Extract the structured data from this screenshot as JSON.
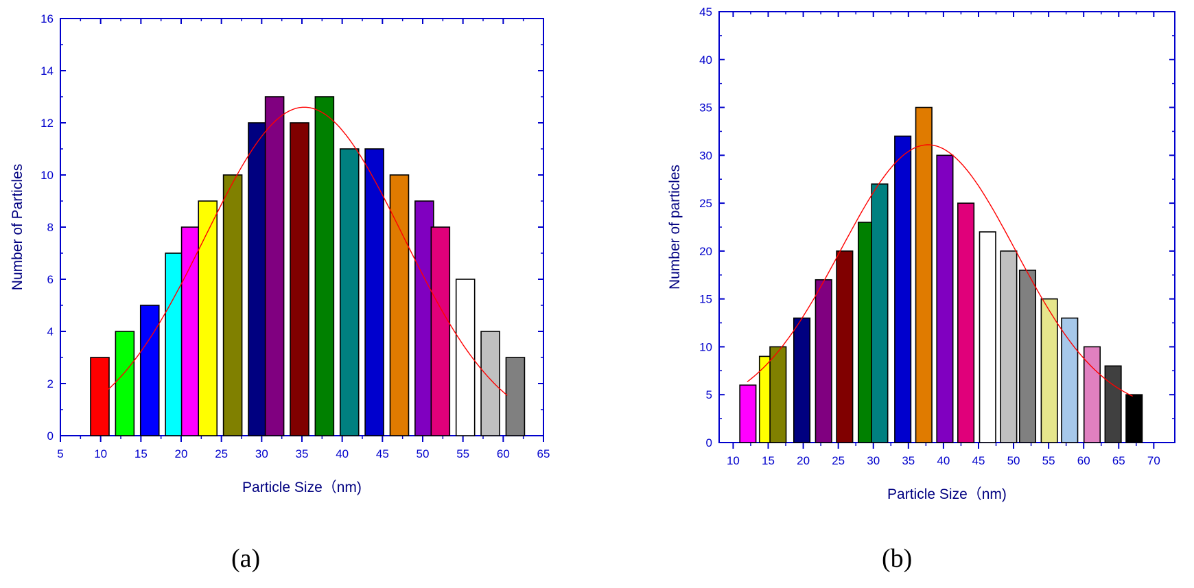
{
  "chart_data": [
    {
      "type": "bar",
      "panel_label": "(a)",
      "xlabel": "Particle Size（nm)",
      "ylabel": "Number of Particles",
      "xlim": [
        5,
        65
      ],
      "ylim": [
        0,
        16
      ],
      "xticks": [
        "5",
        "10",
        "15",
        "20",
        "25",
        "30",
        "35",
        "40",
        "45",
        "50",
        "55",
        "60",
        "65"
      ],
      "yticks": [
        "0",
        "2",
        "4",
        "6",
        "8",
        "10",
        "12",
        "14",
        "16"
      ],
      "bar_width": 2.3,
      "bars": [
        {
          "x": 9.9,
          "value": 3,
          "color": "#ff0000"
        },
        {
          "x": 13.0,
          "value": 4,
          "color": "#00ff00"
        },
        {
          "x": 16.1,
          "value": 5,
          "color": "#0000ff"
        },
        {
          "x": 19.2,
          "value": 7,
          "color": "#00ffff"
        },
        {
          "x": 21.2,
          "value": 8,
          "color": "#ff00ff"
        },
        {
          "x": 23.3,
          "value": 9,
          "color": "#ffff00"
        },
        {
          "x": 26.4,
          "value": 10,
          "color": "#808000"
        },
        {
          "x": 29.5,
          "value": 12,
          "color": "#000080"
        },
        {
          "x": 31.6,
          "value": 13,
          "color": "#800080"
        },
        {
          "x": 34.7,
          "value": 12,
          "color": "#800000"
        },
        {
          "x": 37.8,
          "value": 13,
          "color": "#008000"
        },
        {
          "x": 40.9,
          "value": 11,
          "color": "#008080"
        },
        {
          "x": 44.0,
          "value": 11,
          "color": "#0000cd"
        },
        {
          "x": 47.1,
          "value": 10,
          "color": "#e07b00"
        },
        {
          "x": 50.2,
          "value": 9,
          "color": "#8000c0"
        },
        {
          "x": 52.2,
          "value": 8,
          "color": "#e0007a"
        },
        {
          "x": 55.3,
          "value": 6,
          "color": "#ffffff"
        },
        {
          "x": 58.4,
          "value": 4,
          "color": "#c0c0c0"
        },
        {
          "x": 61.5,
          "value": 3,
          "color": "#808080"
        }
      ],
      "fit": {
        "type": "gaussian",
        "color": "#ff0000",
        "mean": 35.3,
        "sd": 12.3,
        "peak": 12.6,
        "x_range": [
          10.5,
          60.5
        ]
      }
    },
    {
      "type": "bar",
      "panel_label": "(b)",
      "xlabel": "Particle Size（nm)",
      "ylabel": "Number of particles",
      "xlim": [
        8,
        73
      ],
      "ylim": [
        0,
        45
      ],
      "xticks": [
        "10",
        "15",
        "20",
        "25",
        "30",
        "35",
        "40",
        "45",
        "50",
        "55",
        "60",
        "65",
        "70"
      ],
      "yticks": [
        "0",
        "5",
        "10",
        "15",
        "20",
        "25",
        "30",
        "35",
        "40",
        "45"
      ],
      "bar_width": 2.3,
      "bars": [
        {
          "x": 12.1,
          "value": 6,
          "color": "#ff00ff"
        },
        {
          "x": 14.9,
          "value": 9,
          "color": "#ffff00"
        },
        {
          "x": 16.4,
          "value": 10,
          "color": "#808000"
        },
        {
          "x": 19.8,
          "value": 13,
          "color": "#000080"
        },
        {
          "x": 22.9,
          "value": 17,
          "color": "#800080"
        },
        {
          "x": 25.9,
          "value": 20,
          "color": "#800000"
        },
        {
          "x": 29.0,
          "value": 23,
          "color": "#008000"
        },
        {
          "x": 30.9,
          "value": 27,
          "color": "#008080"
        },
        {
          "x": 34.2,
          "value": 32,
          "color": "#0000cd"
        },
        {
          "x": 37.2,
          "value": 35,
          "color": "#e07b00"
        },
        {
          "x": 40.2,
          "value": 30,
          "color": "#8000c0"
        },
        {
          "x": 43.2,
          "value": 25,
          "color": "#e0007a"
        },
        {
          "x": 46.3,
          "value": 22,
          "color": "#ffffff"
        },
        {
          "x": 49.3,
          "value": 20,
          "color": "#c0c0c0"
        },
        {
          "x": 52.0,
          "value": 18,
          "color": "#808080"
        },
        {
          "x": 55.1,
          "value": 15,
          "color": "#e6e68c"
        },
        {
          "x": 58.0,
          "value": 13,
          "color": "#a6c8ea"
        },
        {
          "x": 61.2,
          "value": 10,
          "color": "#e080c0"
        },
        {
          "x": 64.2,
          "value": 8,
          "color": "#404040"
        },
        {
          "x": 67.2,
          "value": 5,
          "color": "#000000"
        }
      ],
      "fit": {
        "type": "gaussian",
        "color": "#ff0000",
        "mean": 37.8,
        "sd": 12.5,
        "peak": 31.1,
        "baseline": 3.0,
        "x_range": [
          12.0,
          67.0
        ]
      }
    }
  ],
  "panel_labels": {
    "a": "(a)",
    "b": "(b)"
  }
}
